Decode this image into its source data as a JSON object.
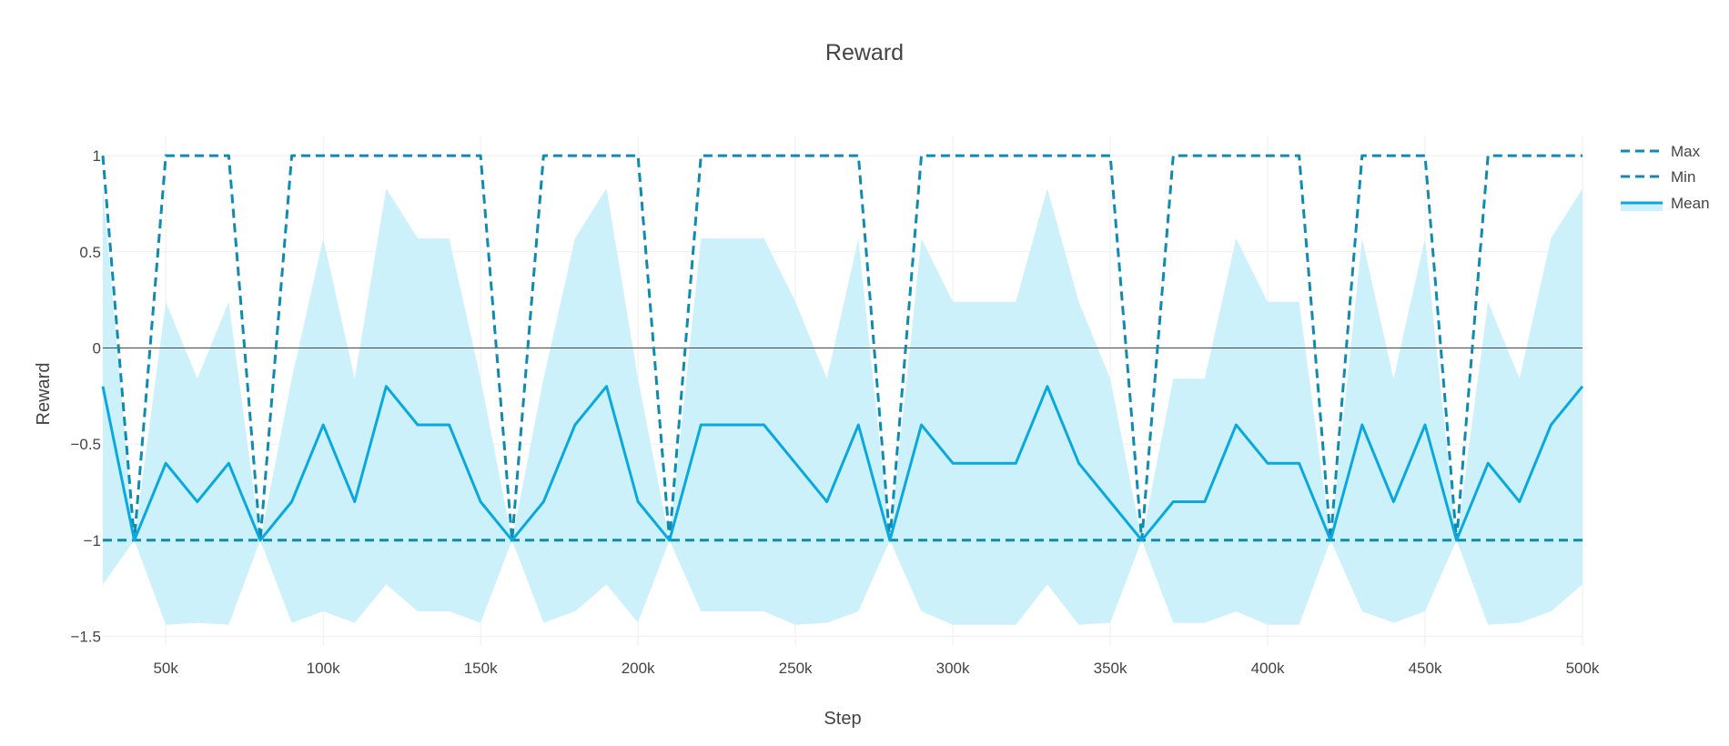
{
  "chart_data": {
    "type": "line",
    "title": "Reward",
    "xlabel": "Step",
    "ylabel": "Reward",
    "xlim": [
      30000,
      500000
    ],
    "ylim": [
      -1.55,
      1.1
    ],
    "x_ticks": [
      50000,
      100000,
      150000,
      200000,
      250000,
      300000,
      350000,
      400000,
      450000,
      500000
    ],
    "x_tick_labels": [
      "50k",
      "100k",
      "150k",
      "200k",
      "250k",
      "300k",
      "350k",
      "400k",
      "450k",
      "500k"
    ],
    "y_ticks": [
      -1.5,
      -1,
      -0.5,
      0,
      0.5,
      1
    ],
    "y_tick_labels": [
      "−1.5",
      "−1",
      "−0.5",
      "0",
      "0.5",
      "1"
    ],
    "grid": true,
    "zero_line": true,
    "legend_position": "top-right",
    "x": [
      30000,
      40000,
      50000,
      60000,
      70000,
      80000,
      90000,
      100000,
      110000,
      120000,
      130000,
      140000,
      150000,
      160000,
      170000,
      180000,
      190000,
      200000,
      210000,
      220000,
      230000,
      240000,
      250000,
      260000,
      270000,
      280000,
      290000,
      300000,
      310000,
      320000,
      330000,
      340000,
      350000,
      360000,
      370000,
      380000,
      390000,
      400000,
      410000,
      420000,
      430000,
      440000,
      450000,
      460000,
      470000,
      480000,
      490000,
      500000
    ],
    "series": [
      {
        "name": "Max",
        "style": "dash",
        "color": "#0d8bb0",
        "values": [
          1,
          -1,
          1,
          1,
          1,
          -1,
          1,
          1,
          1,
          1,
          1,
          1,
          1,
          -1,
          1,
          1,
          1,
          1,
          -1,
          1,
          1,
          1,
          1,
          1,
          1,
          -1,
          1,
          1,
          1,
          1,
          1,
          1,
          1,
          -1,
          1,
          1,
          1,
          1,
          1,
          -1,
          1,
          1,
          1,
          -1,
          1,
          1,
          1,
          1
        ]
      },
      {
        "name": "Min",
        "style": "dash",
        "color": "#0d8bb0",
        "values": [
          -1,
          -1,
          -1,
          -1,
          -1,
          -1,
          -1,
          -1,
          -1,
          -1,
          -1,
          -1,
          -1,
          -1,
          -1,
          -1,
          -1,
          -1,
          -1,
          -1,
          -1,
          -1,
          -1,
          -1,
          -1,
          -1,
          -1,
          -1,
          -1,
          -1,
          -1,
          -1,
          -1,
          -1,
          -1,
          -1,
          -1,
          -1,
          -1,
          -1,
          -1,
          -1,
          -1,
          -1,
          -1,
          -1,
          -1,
          -1
        ]
      },
      {
        "name": "Mean",
        "style": "solid",
        "color": "#0aa8e0",
        "band_color": "#cdf1fa",
        "values": [
          -0.2,
          -1,
          -0.6,
          -0.8,
          -0.6,
          -1,
          -0.8,
          -0.4,
          -0.8,
          -0.2,
          -0.4,
          -0.4,
          -0.8,
          -1,
          -0.8,
          -0.4,
          -0.2,
          -0.8,
          -1,
          -0.4,
          -0.4,
          -0.4,
          -0.6,
          -0.8,
          -0.4,
          -1,
          -0.4,
          -0.6,
          -0.6,
          -0.6,
          -0.2,
          -0.6,
          -0.8,
          -1,
          -0.8,
          -0.8,
          -0.4,
          -0.6,
          -0.6,
          -1,
          -0.4,
          -0.8,
          -0.4,
          -1,
          -0.6,
          -0.8,
          -0.4,
          -0.2
        ],
        "band_upper": [
          0.83,
          -1,
          0.24,
          -0.16,
          0.24,
          -1,
          -0.16,
          0.57,
          -0.16,
          0.83,
          0.57,
          0.57,
          -0.16,
          -1,
          -0.16,
          0.57,
          0.83,
          -0.16,
          -1,
          0.57,
          0.57,
          0.57,
          0.24,
          -0.16,
          0.57,
          -1,
          0.57,
          0.24,
          0.24,
          0.24,
          0.83,
          0.24,
          -0.16,
          -1,
          -0.16,
          -0.16,
          0.57,
          0.24,
          0.24,
          -1,
          0.57,
          -0.16,
          0.57,
          -1,
          0.24,
          -0.16,
          0.57,
          0.83
        ],
        "band_lower": [
          -1.23,
          -1,
          -1.44,
          -1.43,
          -1.44,
          -1,
          -1.43,
          -1.37,
          -1.43,
          -1.23,
          -1.37,
          -1.37,
          -1.43,
          -1,
          -1.43,
          -1.37,
          -1.23,
          -1.43,
          -1,
          -1.37,
          -1.37,
          -1.37,
          -1.44,
          -1.43,
          -1.37,
          -1,
          -1.37,
          -1.44,
          -1.44,
          -1.44,
          -1.23,
          -1.44,
          -1.43,
          -1,
          -1.43,
          -1.43,
          -1.37,
          -1.44,
          -1.44,
          -1,
          -1.37,
          -1.43,
          -1.37,
          -1,
          -1.44,
          -1.43,
          -1.37,
          -1.23
        ]
      }
    ]
  }
}
